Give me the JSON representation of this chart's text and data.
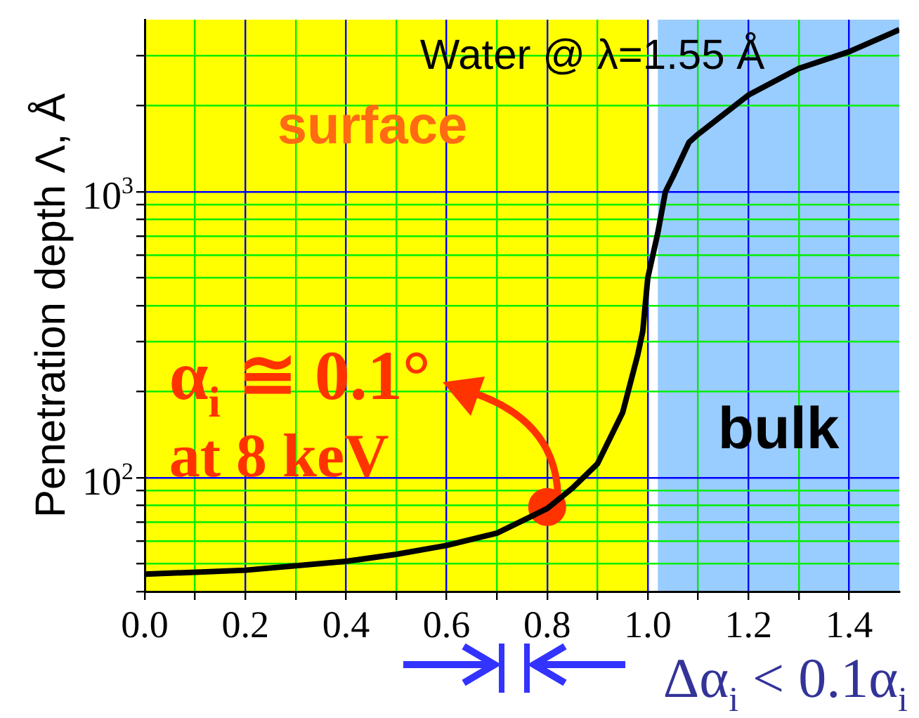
{
  "chart_data": {
    "type": "line",
    "title": "Water @ λ=1.55 Å",
    "ylabel": "Penetration depth Λ, Å",
    "x": [
      0,
      0.2,
      0.4,
      0.5,
      0.6,
      0.7,
      0.8,
      0.85,
      0.9,
      0.95,
      0.98,
      0.99,
      1.0,
      1.02,
      1.035,
      1.05,
      1.082,
      1.1,
      1.2,
      1.3,
      1.4,
      1.5
    ],
    "series": [
      {
        "color": "#000000",
        "values": [
          46,
          47.5,
          51,
          54,
          58,
          64,
          78,
          92,
          112,
          169,
          269,
          325,
          500,
          720,
          1000,
          1130,
          1490,
          1590,
          2180,
          2700,
          3090,
          3690
        ]
      },
      {
        "type": "scatter",
        "color": "#ff3300",
        "x": [
          0.8
        ],
        "values": [
          79
        ]
      }
    ],
    "log": "y",
    "xlim": [
      0,
      1.5
    ],
    "ylim": [
      40,
      4000
    ],
    "xticks": [
      {
        "value": 0,
        "label": "0.0"
      },
      {
        "value": 0.1,
        "label": null
      },
      0.2,
      {
        "value": 0.3,
        "label": null
      },
      0.4,
      {
        "value": 0.5,
        "label": null
      },
      0.6,
      {
        "value": 0.7,
        "label": null
      },
      0.8,
      {
        "value": 0.9,
        "label": null
      },
      {
        "value": 1,
        "label": "1.0"
      },
      {
        "value": 1.1,
        "label": null
      },
      1.2,
      {
        "value": 1.3,
        "label": null
      },
      1.4
    ],
    "yticks": [
      {
        "value": 40,
        "label": null
      },
      {
        "value": 50,
        "label": null
      },
      {
        "value": 60,
        "label": null
      },
      {
        "value": 70,
        "label": null
      },
      {
        "value": 80,
        "label": null
      },
      {
        "value": 90,
        "label": null
      },
      {
        "value": 100,
        "label": "10$^{2}$"
      },
      {
        "value": 200,
        "label": null
      },
      {
        "value": 300,
        "label": null
      },
      {
        "value": 400,
        "label": null
      },
      {
        "value": 500,
        "label": null
      },
      {
        "value": 600,
        "label": null
      },
      {
        "value": 700,
        "label": null
      },
      {
        "value": 800,
        "label": null
      },
      {
        "value": 900,
        "label": null
      },
      {
        "value": 1000,
        "label": "10$^{3}$"
      },
      {
        "value": 2000,
        "label": null
      },
      {
        "value": 3000,
        "label": null
      }
    ],
    "grid": true,
    "legend": false,
    "bands": [
      {
        "axis": "x",
        "from": 0,
        "to": 1,
        "label": "surface",
        "color": "#ffff00"
      },
      {
        "axis": "x",
        "from": 1.02,
        "to": 1.5,
        "label": "bulk",
        "color": "#99ccff"
      }
    ],
    "annotations": [
      {
        "text": "α$_{i}$ ≅ 0.1°\nat 8 keV",
        "x": 0.8,
        "y": 79
      },
      "Δα$_{i}$ < 0.1α$_{i}$"
    ]
  }
}
